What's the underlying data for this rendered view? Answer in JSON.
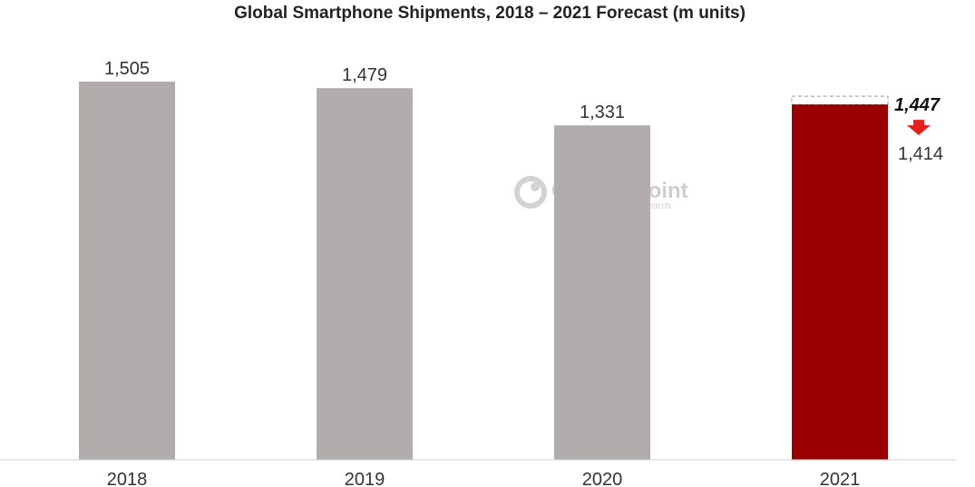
{
  "chart_data": {
    "type": "bar",
    "title": "Global Smartphone Shipments, 2018 – 2021 Forecast (m units)",
    "categories": [
      "2018",
      "2019",
      "2020",
      "2021"
    ],
    "values": [
      1505,
      1479,
      1331,
      1414
    ],
    "value_labels": [
      "1,505",
      "1,479",
      "1,331",
      "1,414"
    ],
    "previous_forecast": {
      "category": "2021",
      "value": 1447,
      "label": "1,447"
    },
    "ylim": [
      0,
      1600
    ],
    "grid": false,
    "colors": {
      "actual": "#b0adac",
      "forecast": "#9b0000",
      "arrow": "#e8201c",
      "previous_outline": "#9a9a9a"
    }
  },
  "watermark": {
    "name": "Counterpoint",
    "tagline": "Technology Market Research",
    "icon": "counterpoint-logo-icon"
  }
}
